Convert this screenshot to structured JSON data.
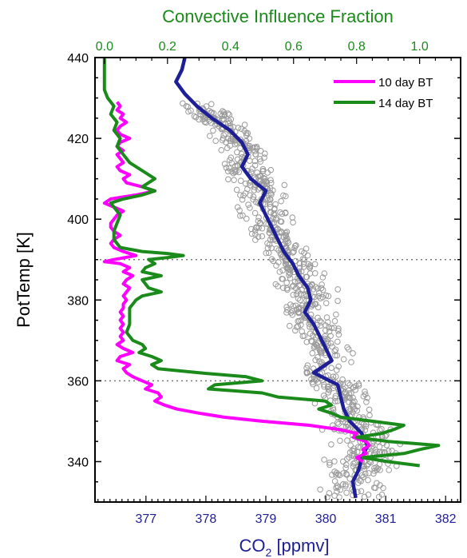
{
  "chart_data": {
    "type": "line",
    "title": "",
    "top_axis": {
      "label": "Convective Influence Fraction",
      "range": [
        -0.03,
        1.13
      ],
      "ticks": [
        0.0,
        0.2,
        0.4,
        0.6,
        0.8,
        1.0
      ],
      "tick_labels": [
        "0.0",
        "0.2",
        "0.4",
        "0.6",
        "0.8",
        "1.0"
      ],
      "color": "#1a8a1a"
    },
    "bottom_axis": {
      "label_main": "CO",
      "label_sub": "2",
      "label_unit": " [ppmv]",
      "range": [
        376.15,
        382.25
      ],
      "ticks": [
        377,
        378,
        379,
        380,
        381,
        382
      ],
      "tick_labels": [
        "377",
        "378",
        "379",
        "380",
        "381",
        "382"
      ],
      "color": "#1e1e96"
    },
    "y_axis": {
      "label": "PotTemp [K]",
      "range": [
        330,
        440
      ],
      "ticks": [
        340,
        360,
        380,
        400,
        420,
        440
      ],
      "tick_labels": [
        "340",
        "360",
        "380",
        "400",
        "420",
        "440"
      ]
    },
    "reference_lines_y": [
      360,
      390
    ],
    "legend": {
      "placement": "top-right"
    },
    "series": [
      {
        "name": "10 day BT",
        "axis": "top",
        "color": "#ff00ff",
        "points": [
          [
            0.04,
            429
          ],
          [
            0.05,
            428
          ],
          [
            0.04,
            427
          ],
          [
            0.06,
            426
          ],
          [
            0.05,
            425
          ],
          [
            0.07,
            424
          ],
          [
            0.05,
            423
          ],
          [
            0.04,
            422
          ],
          [
            0.05,
            421
          ],
          [
            0.08,
            420
          ],
          [
            0.05,
            419
          ],
          [
            0.04,
            418
          ],
          [
            0.06,
            417
          ],
          [
            0.04,
            416
          ],
          [
            0.05,
            415
          ],
          [
            0.06,
            414
          ],
          [
            0.04,
            413
          ],
          [
            0.05,
            412
          ],
          [
            0.08,
            411
          ],
          [
            0.06,
            410
          ],
          [
            0.07,
            409
          ],
          [
            0.12,
            408
          ],
          [
            0.16,
            407
          ],
          [
            0.1,
            406
          ],
          [
            0.02,
            405
          ],
          [
            0.0,
            404
          ],
          [
            0.03,
            403
          ],
          [
            0.06,
            402
          ],
          [
            0.04,
            401
          ],
          [
            0.03,
            400
          ],
          [
            0.02,
            399
          ],
          [
            0.02,
            398
          ],
          [
            0.03,
            397
          ],
          [
            0.05,
            396
          ],
          [
            0.03,
            395
          ],
          [
            0.02,
            394
          ],
          [
            0.03,
            393
          ],
          [
            0.06,
            392
          ],
          [
            0.1,
            391
          ],
          [
            0.03,
            390
          ],
          [
            0.0,
            389.5
          ],
          [
            0.05,
            389
          ],
          [
            0.08,
            388
          ],
          [
            0.06,
            387
          ],
          [
            0.09,
            386
          ],
          [
            0.07,
            385
          ],
          [
            0.06,
            384
          ],
          [
            0.08,
            383
          ],
          [
            0.07,
            382
          ],
          [
            0.06,
            381
          ],
          [
            0.07,
            380
          ],
          [
            0.06,
            379
          ],
          [
            0.06,
            378
          ],
          [
            0.05,
            377
          ],
          [
            0.06,
            376
          ],
          [
            0.05,
            375
          ],
          [
            0.06,
            374
          ],
          [
            0.05,
            373
          ],
          [
            0.06,
            372
          ],
          [
            0.05,
            371
          ],
          [
            0.06,
            370
          ],
          [
            0.04,
            369
          ],
          [
            0.06,
            368
          ],
          [
            0.09,
            367
          ],
          [
            0.05,
            366
          ],
          [
            0.04,
            365
          ],
          [
            0.08,
            364
          ],
          [
            0.06,
            363
          ],
          [
            0.07,
            362
          ],
          [
            0.09,
            361
          ],
          [
            0.12,
            360
          ],
          [
            0.15,
            359
          ],
          [
            0.13,
            358
          ],
          [
            0.17,
            357
          ],
          [
            0.18,
            356
          ],
          [
            0.16,
            355
          ],
          [
            0.19,
            354
          ],
          [
            0.23,
            353
          ],
          [
            0.3,
            352
          ],
          [
            0.38,
            351
          ],
          [
            0.5,
            350
          ],
          [
            0.65,
            349
          ],
          [
            0.74,
            348
          ],
          [
            0.8,
            347
          ],
          [
            0.79,
            346
          ],
          [
            0.83,
            345
          ],
          [
            0.84,
            344
          ],
          [
            0.82,
            343
          ],
          [
            0.83,
            342
          ],
          [
            0.8,
            341
          ],
          [
            0.82,
            340
          ]
        ]
      },
      {
        "name": "14 day BT",
        "axis": "top",
        "color": "#1a8a1a",
        "points": [
          [
            0.0,
            440
          ],
          [
            0.0,
            437
          ],
          [
            0.0,
            434
          ],
          [
            0.0,
            432
          ],
          [
            0.01,
            430
          ],
          [
            0.03,
            428
          ],
          [
            0.02,
            426
          ],
          [
            0.04,
            424
          ],
          [
            0.03,
            422
          ],
          [
            0.05,
            420
          ],
          [
            0.04,
            418
          ],
          [
            0.06,
            416
          ],
          [
            0.08,
            414
          ],
          [
            0.12,
            412
          ],
          [
            0.16,
            410
          ],
          [
            0.12,
            408
          ],
          [
            0.16,
            407
          ],
          [
            0.12,
            406
          ],
          [
            0.06,
            405
          ],
          [
            0.02,
            404
          ],
          [
            0.03,
            403
          ],
          [
            0.05,
            401
          ],
          [
            0.04,
            399
          ],
          [
            0.03,
            397
          ],
          [
            0.03,
            395
          ],
          [
            0.05,
            393
          ],
          [
            0.12,
            392
          ],
          [
            0.2,
            391.5
          ],
          [
            0.25,
            391
          ],
          [
            0.2,
            390.5
          ],
          [
            0.14,
            390
          ],
          [
            0.16,
            389
          ],
          [
            0.13,
            388
          ],
          [
            0.12,
            387
          ],
          [
            0.18,
            386
          ],
          [
            0.12,
            385
          ],
          [
            0.13,
            384
          ],
          [
            0.14,
            383
          ],
          [
            0.18,
            382
          ],
          [
            0.12,
            381
          ],
          [
            0.1,
            380
          ],
          [
            0.09,
            379
          ],
          [
            0.08,
            378
          ],
          [
            0.08,
            376
          ],
          [
            0.08,
            374
          ],
          [
            0.07,
            372
          ],
          [
            0.09,
            370
          ],
          [
            0.12,
            369
          ],
          [
            0.13,
            368
          ],
          [
            0.11,
            367
          ],
          [
            0.15,
            366
          ],
          [
            0.18,
            365
          ],
          [
            0.15,
            364
          ],
          [
            0.17,
            363
          ],
          [
            0.3,
            362
          ],
          [
            0.45,
            361
          ],
          [
            0.5,
            360
          ],
          [
            0.35,
            359
          ],
          [
            0.33,
            358
          ],
          [
            0.5,
            357
          ],
          [
            0.55,
            356
          ],
          [
            0.7,
            355
          ],
          [
            0.72,
            354
          ],
          [
            0.68,
            353
          ],
          [
            0.72,
            352
          ],
          [
            0.75,
            351
          ],
          [
            0.85,
            350
          ],
          [
            0.95,
            349
          ],
          [
            0.92,
            348
          ],
          [
            0.88,
            347
          ],
          [
            0.8,
            346
          ],
          [
            0.9,
            345
          ],
          [
            1.06,
            344
          ],
          [
            1.0,
            343
          ],
          [
            0.95,
            342
          ],
          [
            0.82,
            341
          ],
          [
            0.9,
            340
          ],
          [
            1.0,
            339
          ]
        ]
      },
      {
        "name": "",
        "axis": "bottom",
        "color": "#1e1e96",
        "points": [
          [
            377.65,
            440
          ],
          [
            377.6,
            437
          ],
          [
            377.5,
            434
          ],
          [
            377.65,
            431
          ],
          [
            377.85,
            428
          ],
          [
            378.1,
            425
          ],
          [
            378.4,
            422
          ],
          [
            378.6,
            419
          ],
          [
            378.7,
            416
          ],
          [
            378.6,
            413
          ],
          [
            378.75,
            410
          ],
          [
            379.0,
            407
          ],
          [
            378.9,
            404
          ],
          [
            379.0,
            401
          ],
          [
            379.1,
            398
          ],
          [
            379.2,
            395
          ],
          [
            379.3,
            392
          ],
          [
            379.45,
            389
          ],
          [
            379.55,
            386
          ],
          [
            379.7,
            383
          ],
          [
            379.75,
            380
          ],
          [
            379.65,
            377
          ],
          [
            379.8,
            374
          ],
          [
            379.9,
            371
          ],
          [
            380.0,
            368
          ],
          [
            380.1,
            365
          ],
          [
            379.8,
            362
          ],
          [
            380.2,
            359
          ],
          [
            380.25,
            356
          ],
          [
            380.3,
            353
          ],
          [
            380.4,
            350
          ],
          [
            380.6,
            347
          ],
          [
            380.7,
            344
          ],
          [
            380.6,
            341
          ],
          [
            380.55,
            338
          ],
          [
            380.45,
            335
          ],
          [
            380.5,
            331
          ]
        ]
      }
    ]
  }
}
